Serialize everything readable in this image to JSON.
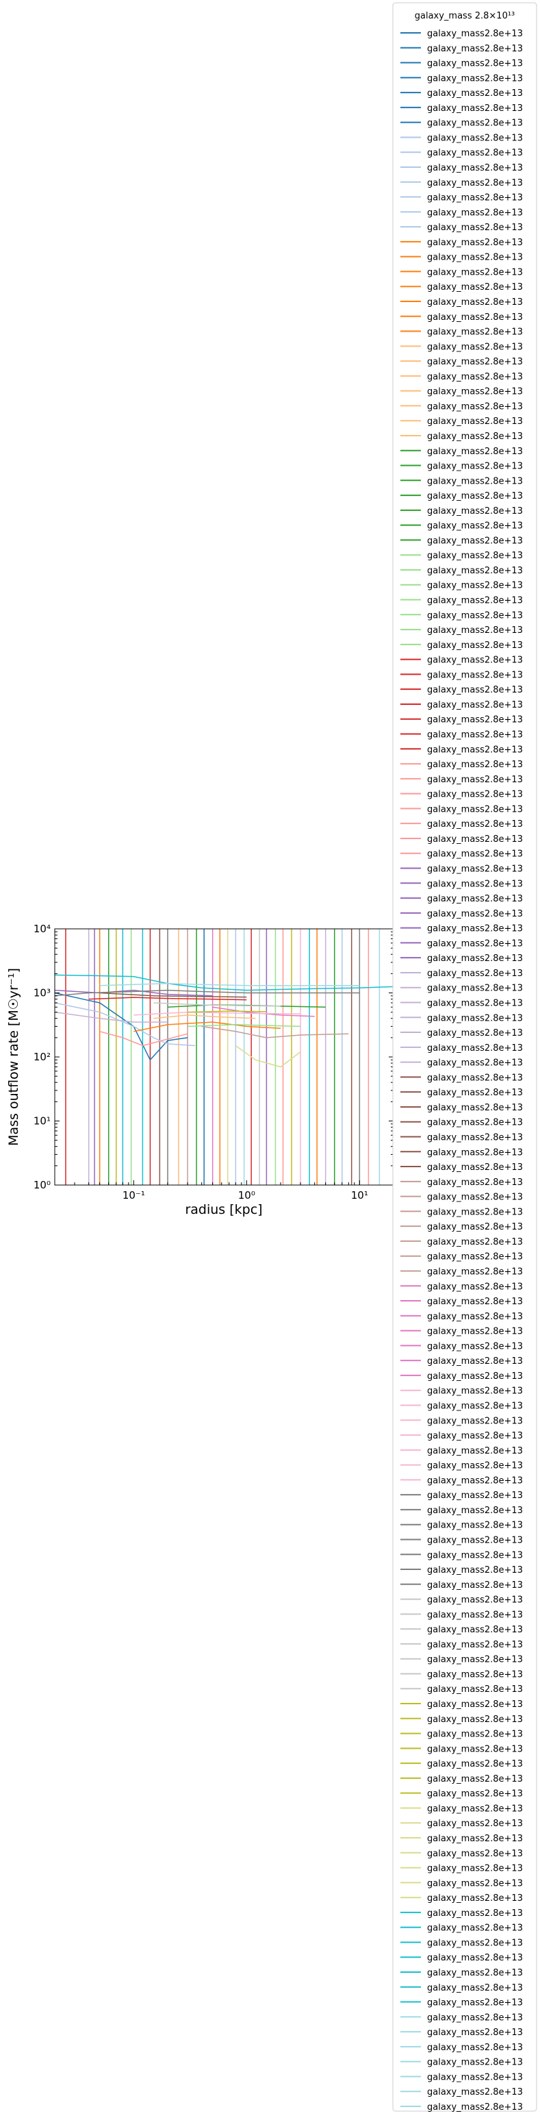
{
  "chart_data": {
    "type": "line",
    "xlabel": "radius [kpc]",
    "ylabel": "Mass outflow rate [M☉yr⁻¹]",
    "xscale": "log",
    "yscale": "log",
    "xlim": [
      0.02,
      20
    ],
    "ylim": [
      1,
      10000
    ],
    "x_ticks": [
      {
        "value": 0.1,
        "label": "10⁻¹"
      },
      {
        "value": 1,
        "label": "10⁰"
      },
      {
        "value": 10,
        "label": "10¹"
      }
    ],
    "y_ticks": [
      {
        "value": 1,
        "label": "10⁰"
      },
      {
        "value": 10,
        "label": "10¹"
      },
      {
        "value": 100,
        "label": "10²"
      },
      {
        "value": 1000,
        "label": "10³"
      },
      {
        "value": 10000,
        "label": "10⁴"
      }
    ],
    "grid": false,
    "legend": {
      "title": "galaxy_mass 2.8×10¹³",
      "placement": "outside-right",
      "entry_label": "galaxy_mass2.8e+13",
      "entry_count": 140
    },
    "palette": [
      "#1f77b4",
      "#aec7e8",
      "#ff7f0e",
      "#ffbb78",
      "#2ca02c",
      "#98df8a",
      "#d62728",
      "#ff9896",
      "#9467bd",
      "#c5b0d5",
      "#8c564b",
      "#c49c94",
      "#e377c2",
      "#f7b6d2",
      "#7f7f7f",
      "#c7c7c7",
      "#bcbd22",
      "#dbdb8d",
      "#17becf",
      "#9edae5"
    ],
    "series": [
      {
        "x": [
          0.02,
          0.05,
          0.1,
          0.14,
          0.2,
          0.3
        ],
        "y": [
          1000,
          700,
          300,
          90,
          180,
          200
        ]
      },
      {
        "x": [
          0.02,
          0.05,
          0.1,
          0.15,
          0.2,
          0.35
        ],
        "y": [
          700,
          500,
          300,
          200,
          160,
          150
        ]
      },
      {
        "x": [
          0.1,
          0.2,
          0.5,
          1,
          2
        ],
        "y": [
          250,
          320,
          350,
          300,
          280
        ]
      },
      {
        "x": [
          0.15,
          0.3,
          0.6,
          1.2
        ],
        "y": [
          400,
          450,
          420,
          400
        ]
      },
      {
        "x": [
          0.2,
          0.5,
          1,
          2,
          5
        ],
        "y": [
          600,
          650,
          640,
          620,
          600
        ]
      },
      {
        "x": [
          0.3,
          0.8,
          1.5,
          3
        ],
        "y": [
          300,
          320,
          310,
          300
        ]
      },
      {
        "x": [
          0.04,
          0.1,
          0.2,
          0.5,
          1
        ],
        "y": [
          800,
          850,
          820,
          800,
          780
        ]
      },
      {
        "x": [
          0.05,
          0.08,
          0.12,
          0.3
        ],
        "y": [
          250,
          200,
          150,
          230
        ]
      },
      {
        "x": [
          0.02,
          0.05,
          0.1,
          0.2,
          0.5
        ],
        "y": [
          1100,
          1000,
          1100,
          950,
          900
        ]
      },
      {
        "x": [
          0.02,
          0.05,
          0.1,
          0.2
        ],
        "y": [
          500,
          400,
          350,
          350
        ]
      },
      {
        "x": [
          0.05,
          0.15,
          0.4,
          1
        ],
        "y": [
          1000,
          900,
          880,
          860
        ]
      },
      {
        "x": [
          0.4,
          0.8,
          1.5,
          3,
          8
        ],
        "y": [
          300,
          250,
          200,
          220,
          230
        ]
      },
      {
        "x": [
          0.5,
          1,
          2,
          4
        ],
        "y": [
          600,
          500,
          450,
          430
        ]
      },
      {
        "x": [
          0.1,
          0.3,
          1,
          3
        ],
        "y": [
          450,
          500,
          480,
          470
        ]
      },
      {
        "x": [
          0.02,
          0.04,
          0.1,
          0.2,
          0.4,
          1,
          3,
          10
        ],
        "y": [
          900,
          1000,
          1050,
          1100,
          1050,
          1000,
          1000,
          1000
        ]
      },
      {
        "x": [
          0.15,
          0.4,
          1,
          2
        ],
        "y": [
          700,
          650,
          630,
          620
        ]
      },
      {
        "x": [
          0.3,
          0.7,
          1.5
        ],
        "y": [
          500,
          520,
          510
        ]
      },
      {
        "x": [
          0.8,
          1.2,
          2,
          3
        ],
        "y": [
          150,
          90,
          70,
          120
        ]
      },
      {
        "x": [
          0.02,
          0.05,
          0.1,
          0.2,
          0.4,
          1,
          3,
          10,
          20
        ],
        "y": [
          1900,
          1850,
          1800,
          1400,
          1200,
          1100,
          1150,
          1200,
          1250
        ]
      },
      {
        "x": [
          0.05,
          0.1,
          0.2,
          0.4,
          1,
          3,
          10
        ],
        "y": [
          1300,
          1350,
          1400,
          1350,
          1300,
          1300,
          1300
        ]
      }
    ],
    "vertical_lines": [
      {
        "x": 0.025,
        "color": "#d62728"
      },
      {
        "x": 0.04,
        "color": "#c5b0d5"
      },
      {
        "x": 0.045,
        "color": "#9467bd"
      },
      {
        "x": 0.05,
        "color": "#ff7f0e"
      },
      {
        "x": 0.06,
        "color": "#2ca02c"
      },
      {
        "x": 0.07,
        "color": "#bcbd22"
      },
      {
        "x": 0.08,
        "color": "#17becf"
      },
      {
        "x": 0.095,
        "color": "#98df8a"
      },
      {
        "x": 0.12,
        "color": "#17becf"
      },
      {
        "x": 0.14,
        "color": "#d62728"
      },
      {
        "x": 0.17,
        "color": "#8c564b"
      },
      {
        "x": 0.2,
        "color": "#7f7f7f"
      },
      {
        "x": 0.25,
        "color": "#ffbb78"
      },
      {
        "x": 0.3,
        "color": "#c49c94"
      },
      {
        "x": 0.36,
        "color": "#2ca02c"
      },
      {
        "x": 0.42,
        "color": "#1f77b4"
      },
      {
        "x": 0.5,
        "color": "#e377c2"
      },
      {
        "x": 0.58,
        "color": "#ff7f0e"
      },
      {
        "x": 0.68,
        "color": "#dbdb8d"
      },
      {
        "x": 0.8,
        "color": "#aec7e8"
      },
      {
        "x": 0.95,
        "color": "#9edae5"
      },
      {
        "x": 1.1,
        "color": "#d62728"
      },
      {
        "x": 1.3,
        "color": "#c7c7c7"
      },
      {
        "x": 1.5,
        "color": "#9467bd"
      },
      {
        "x": 1.8,
        "color": "#98df8a"
      },
      {
        "x": 2.1,
        "color": "#ff9896"
      },
      {
        "x": 2.5,
        "color": "#bcbd22"
      },
      {
        "x": 3,
        "color": "#f7b6d2"
      },
      {
        "x": 3.6,
        "color": "#17becf"
      },
      {
        "x": 4.2,
        "color": "#ff7f0e"
      },
      {
        "x": 5,
        "color": "#c5b0d5"
      },
      {
        "x": 6,
        "color": "#2ca02c"
      },
      {
        "x": 7,
        "color": "#aec7e8"
      },
      {
        "x": 8.5,
        "color": "#8c564b"
      },
      {
        "x": 10,
        "color": "#7f7f7f"
      },
      {
        "x": 12,
        "color": "#ff9896"
      },
      {
        "x": 15,
        "color": "#9edae5"
      }
    ]
  }
}
